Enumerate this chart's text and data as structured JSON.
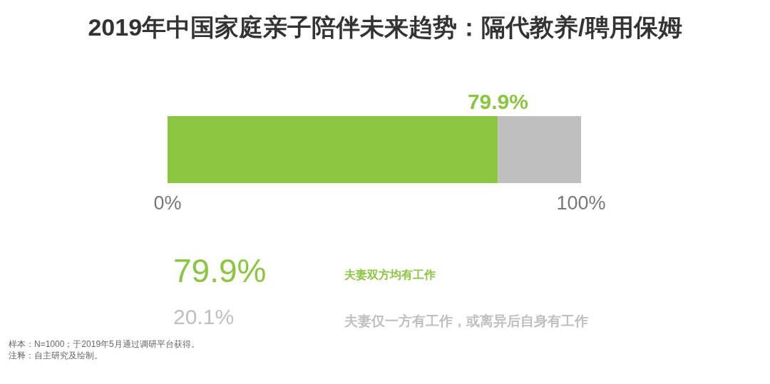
{
  "chart_data": {
    "type": "bar",
    "title": "2019年中国家庭亲子陪伴未来趋势：隔代教养/聘用保姆",
    "orientation": "horizontal",
    "stacked": true,
    "categories": [
      null
    ],
    "series": [
      {
        "name": "夫妻双方均有工作",
        "color": "#8cc540",
        "values": [
          79.9
        ],
        "value_labels": [
          "79.9%"
        ]
      },
      {
        "name": "夫妻仅一方有工作，或离异后自身有工作",
        "color": "#bfbfbf",
        "values": [
          20.1
        ]
      }
    ],
    "xlim": [
      0,
      100
    ],
    "xticks": [
      {
        "value": 0,
        "label": "0%"
      },
      {
        "value": 100,
        "label": "100%"
      }
    ],
    "tick_labels": "x",
    "grid": false,
    "legend": "bottom",
    "annotations": [
      "79.9%",
      "20.1%",
      "样本：N=1000；于2019年5月通过调研平台获得。",
      "注释：自主研究及绘制。"
    ]
  }
}
